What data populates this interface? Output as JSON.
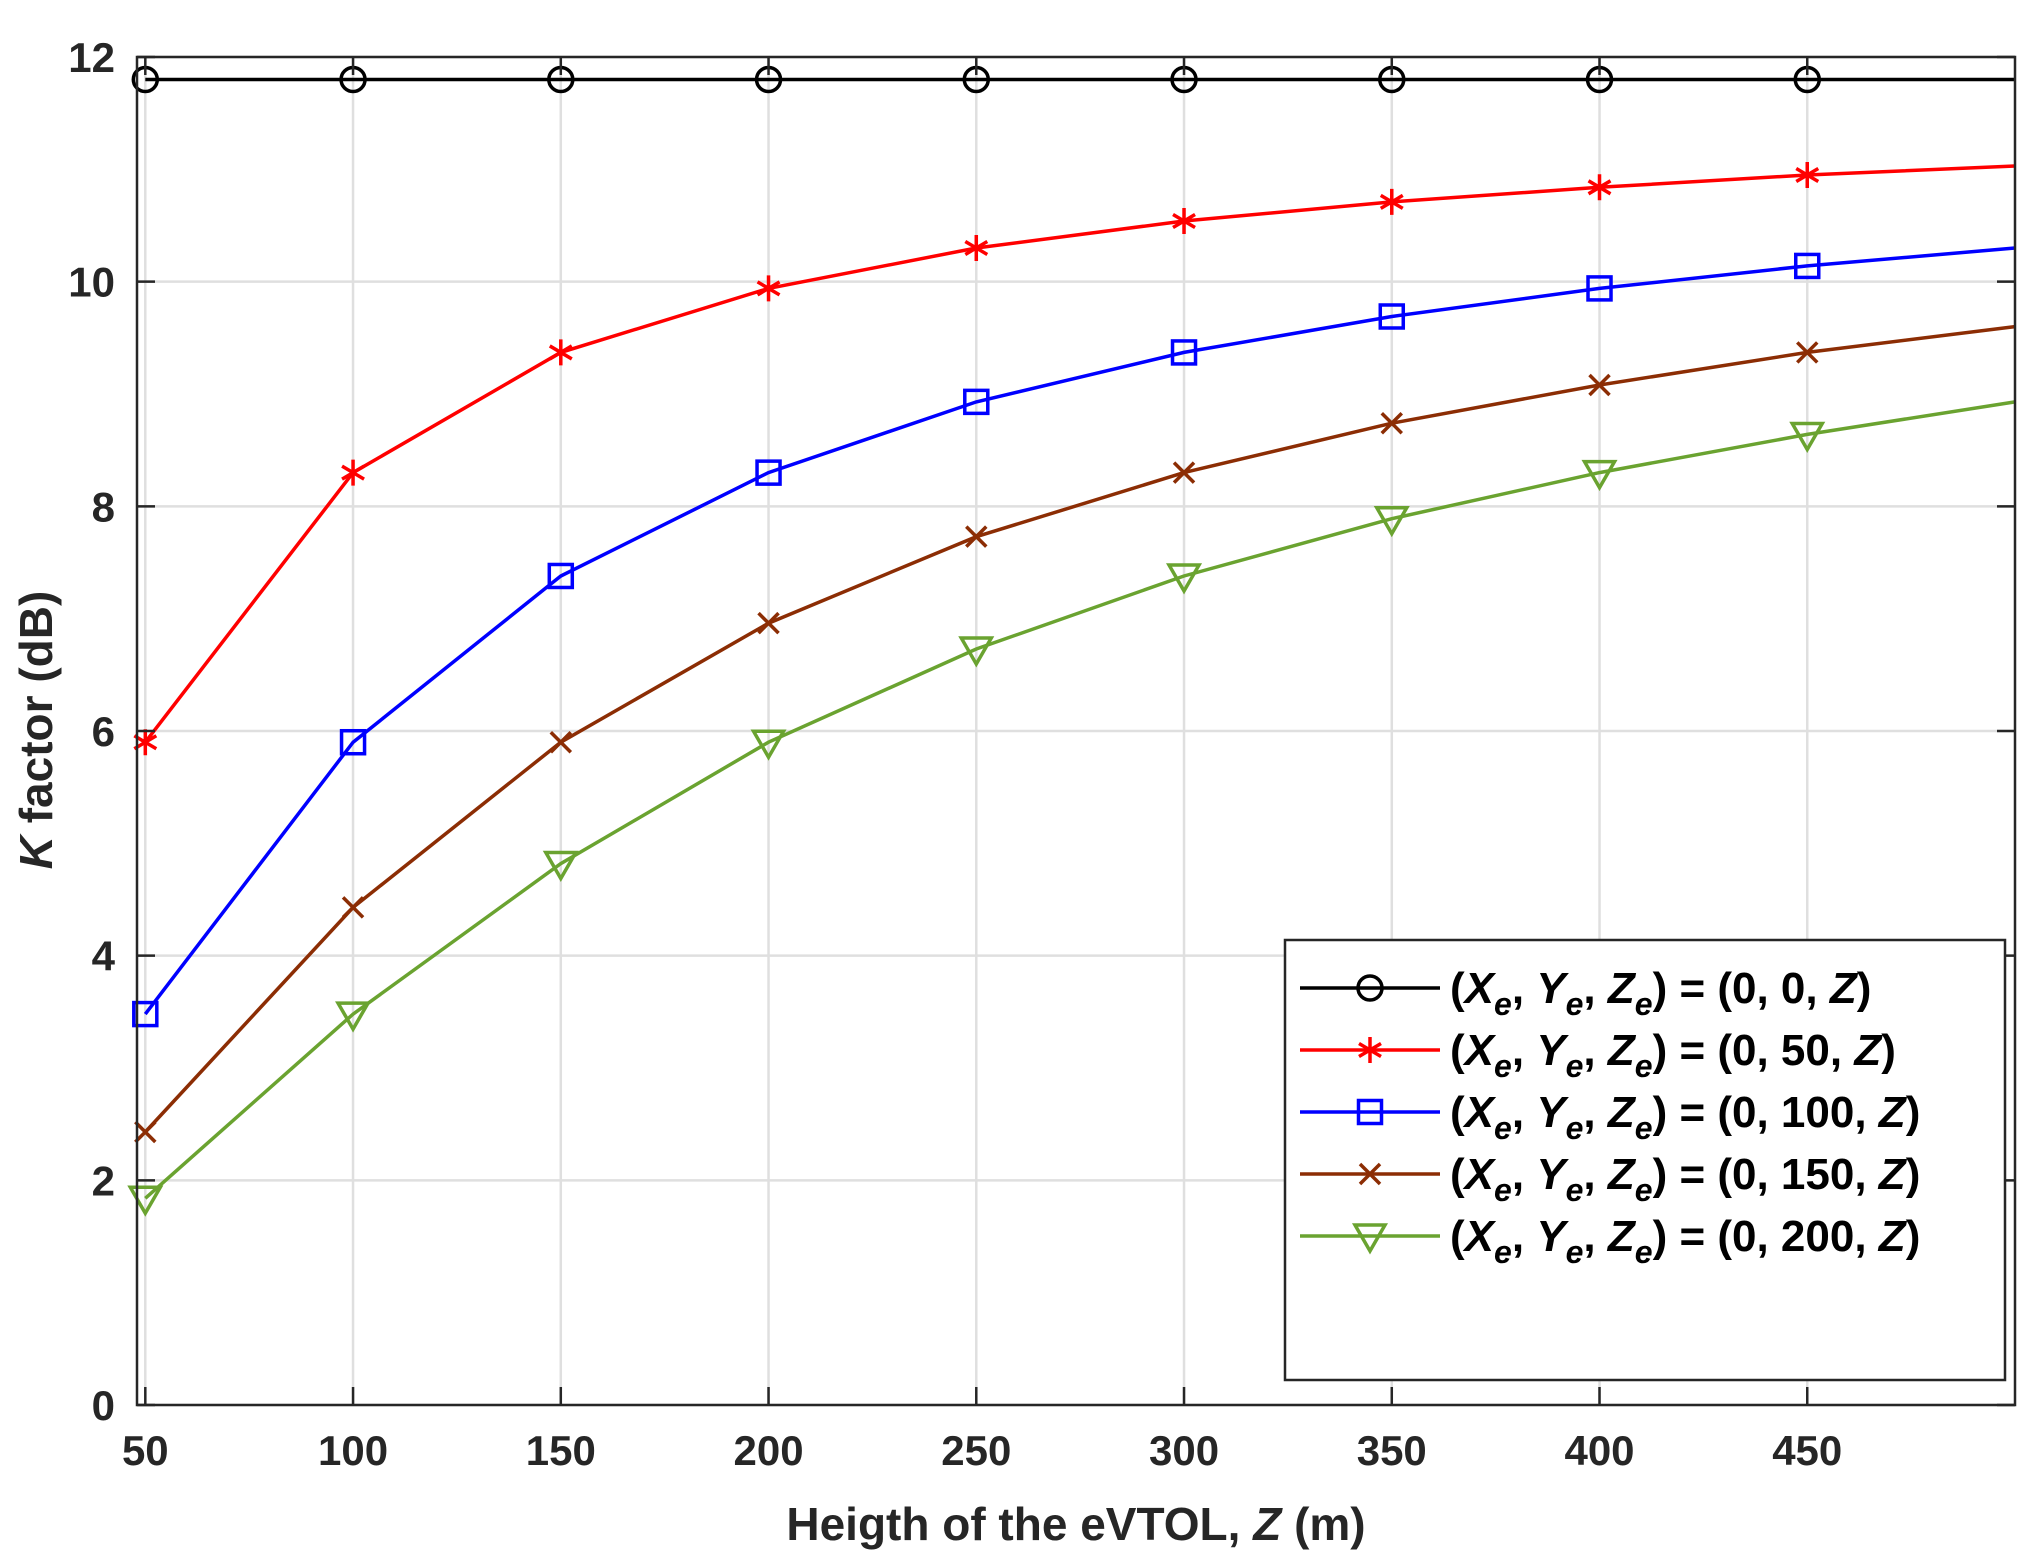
{
  "chart_data": {
    "type": "line",
    "title": "",
    "xlabel": {
      "prefix": "Heigth of the eVTOL, ",
      "var": "Z",
      "suffix": " (m)"
    },
    "ylabel": {
      "var": "K",
      "suffix": " factor (dB)"
    },
    "xlim": [
      48,
      500
    ],
    "ylim": [
      0,
      12
    ],
    "xticks": [
      50,
      100,
      150,
      200,
      250,
      300,
      350,
      400,
      450
    ],
    "yticks": [
      0,
      2,
      4,
      6,
      8,
      10,
      12
    ],
    "grid": true,
    "legend_position": "bottom-right",
    "x": [
      50,
      100,
      150,
      200,
      250,
      300,
      350,
      400,
      450,
      500
    ],
    "series": [
      {
        "name": "(0, 0, Z)",
        "y_value": "0",
        "color": "#000000",
        "marker": "circle",
        "values": [
          11.8,
          11.8,
          11.8,
          11.8,
          11.8,
          11.8,
          11.8,
          11.8,
          11.8,
          11.8
        ]
      },
      {
        "name": "(0, 50, Z)",
        "y_value": "50",
        "color": "#ff0000",
        "marker": "asterisk",
        "values": [
          5.9,
          8.3,
          9.37,
          9.94,
          10.3,
          10.54,
          10.71,
          10.84,
          10.95,
          11.03
        ]
      },
      {
        "name": "(0, 100, Z)",
        "y_value": "100",
        "color": "#0000ff",
        "marker": "square",
        "values": [
          3.48,
          5.9,
          7.38,
          8.3,
          8.93,
          9.37,
          9.69,
          9.94,
          10.14,
          10.3
        ]
      },
      {
        "name": "(0, 150, Z)",
        "y_value": "150",
        "color": "#8c2d04",
        "marker": "x",
        "values": [
          2.43,
          4.43,
          5.9,
          6.96,
          7.73,
          8.3,
          8.74,
          9.08,
          9.37,
          9.6
        ]
      },
      {
        "name": "(0, 200, Z)",
        "y_value": "200",
        "color": "#6aa330",
        "marker": "triangle-down",
        "values": [
          1.84,
          3.48,
          4.82,
          5.9,
          6.73,
          7.38,
          7.89,
          8.3,
          8.64,
          8.93
        ]
      }
    ]
  }
}
